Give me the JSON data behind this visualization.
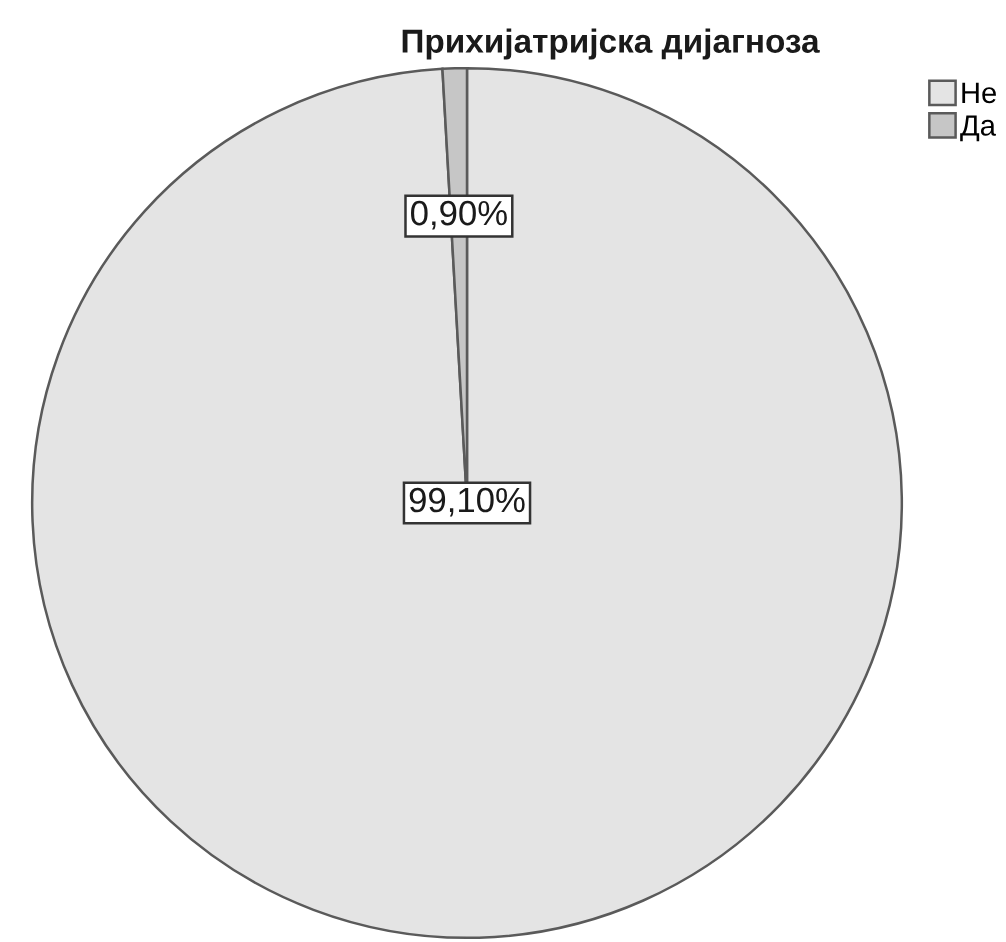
{
  "chart_data": {
    "type": "pie",
    "title": "Прихијатријска дијагноза",
    "categories": [
      "Не",
      "Да"
    ],
    "values": [
      99.1,
      0.9
    ],
    "colors": [
      "#e4e4e4",
      "#c6c6c6"
    ],
    "value_labels": [
      "99,10%",
      "0,90%"
    ],
    "legend": "top right"
  }
}
